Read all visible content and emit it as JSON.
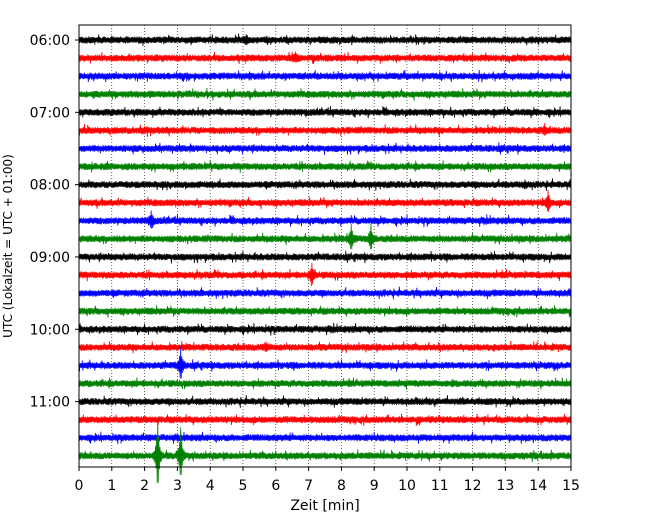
{
  "chart_data": {
    "type": "line",
    "subtype": "helicorder",
    "title": "",
    "xlabel": "Zeit  [min]",
    "ylabel": "UTC (Lokalzeit = UTC + 01:00)",
    "xlim": [
      0,
      15
    ],
    "x_ticks": [
      "0",
      "1",
      "2",
      "3",
      "4",
      "5",
      "6",
      "7",
      "8",
      "9",
      "10",
      "11",
      "12",
      "13",
      "14",
      "15"
    ],
    "y_tick_labels": [
      "06:00",
      "07:00",
      "08:00",
      "09:00",
      "10:00",
      "11:00"
    ],
    "grid": "vertical dotted at each minute",
    "trace_interval_minutes": 15,
    "trace_colors": [
      "#000000",
      "#ff0000",
      "#0000ff",
      "#008000"
    ],
    "traces": [
      {
        "start": "06:00",
        "color": "#000000"
      },
      {
        "start": "06:15",
        "color": "#ff0000"
      },
      {
        "start": "06:30",
        "color": "#0000ff"
      },
      {
        "start": "06:45",
        "color": "#008000"
      },
      {
        "start": "07:00",
        "color": "#000000"
      },
      {
        "start": "07:15",
        "color": "#ff0000"
      },
      {
        "start": "07:30",
        "color": "#0000ff"
      },
      {
        "start": "07:45",
        "color": "#008000"
      },
      {
        "start": "08:00",
        "color": "#000000"
      },
      {
        "start": "08:15",
        "color": "#ff0000"
      },
      {
        "start": "08:30",
        "color": "#0000ff"
      },
      {
        "start": "08:45",
        "color": "#008000"
      },
      {
        "start": "09:00",
        "color": "#000000"
      },
      {
        "start": "09:15",
        "color": "#ff0000"
      },
      {
        "start": "09:30",
        "color": "#0000ff"
      },
      {
        "start": "09:45",
        "color": "#008000"
      },
      {
        "start": "10:00",
        "color": "#000000"
      },
      {
        "start": "10:15",
        "color": "#ff0000"
      },
      {
        "start": "10:30",
        "color": "#0000ff"
      },
      {
        "start": "10:45",
        "color": "#008000"
      },
      {
        "start": "11:00",
        "color": "#000000"
      },
      {
        "start": "11:15",
        "color": "#ff0000"
      },
      {
        "start": "11:30",
        "color": "#0000ff"
      },
      {
        "start": "11:45",
        "color": "#008000"
      }
    ],
    "events": [
      {
        "trace": "06:00",
        "minute": 5.1,
        "amplitude": 0.5
      },
      {
        "trace": "06:15",
        "minute": 6.6,
        "amplitude": 0.5
      },
      {
        "trace": "07:15",
        "minute": 14.2,
        "amplitude": 0.5
      },
      {
        "trace": "08:00",
        "minute": 13.6,
        "amplitude": 0.4
      },
      {
        "trace": "08:15",
        "minute": 14.3,
        "amplitude": 1.6
      },
      {
        "trace": "08:30",
        "minute": 2.2,
        "amplitude": 1.2
      },
      {
        "trace": "08:45",
        "minute": 8.3,
        "amplitude": 2.0
      },
      {
        "trace": "08:45",
        "minute": 8.9,
        "amplitude": 1.9
      },
      {
        "trace": "09:15",
        "minute": 7.1,
        "amplitude": 1.6
      },
      {
        "trace": "10:15",
        "minute": 5.7,
        "amplitude": 0.6
      },
      {
        "trace": "10:30",
        "minute": 3.1,
        "amplitude": 2.5
      },
      {
        "trace": "11:45",
        "minute": 2.4,
        "amplitude": 6.0
      },
      {
        "trace": "11:45",
        "minute": 3.1,
        "amplitude": 4.2
      }
    ]
  }
}
